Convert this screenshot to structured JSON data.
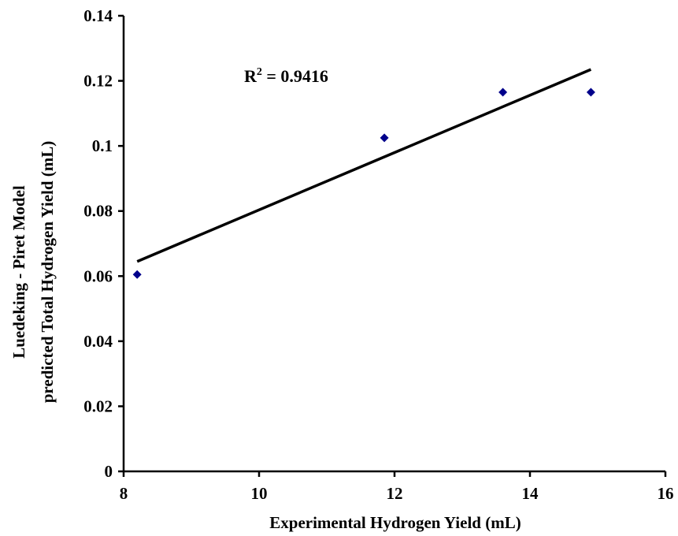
{
  "chart_data": {
    "type": "scatter",
    "xlabel": "Experimental Hydrogen Yield (mL)",
    "ylabel_line1": "Luedeking - Piret Model",
    "ylabel_line2": "predicted Total Hydrogen Yield (mL)",
    "xlim": [
      8,
      16
    ],
    "ylim": [
      0,
      0.14
    ],
    "x_ticks": [
      8,
      10,
      12,
      14,
      16
    ],
    "y_ticks": [
      0,
      0.02,
      0.04,
      0.06,
      0.08,
      0.1,
      0.12,
      0.14
    ],
    "x_tick_labels": [
      "8",
      "10",
      "12",
      "14",
      "16"
    ],
    "y_tick_labels": [
      "0",
      "0.02",
      "0.04",
      "0.06",
      "0.08",
      "0.1",
      "0.12",
      "0.14"
    ],
    "series": [
      {
        "marker": "diamond",
        "color": "#00008B",
        "x": [
          8.2,
          11.85,
          13.6,
          14.9
        ],
        "y": [
          0.0605,
          0.1025,
          0.1165,
          0.1165
        ]
      }
    ],
    "trendline": {
      "type": "linear",
      "color": "#000000",
      "x": [
        8.2,
        14.9
      ],
      "y": [
        0.0645,
        0.1235
      ]
    },
    "annotation": {
      "prefix": "R",
      "superscript": "2",
      "suffix": " = 0.9416"
    },
    "grid": false,
    "legend": "none"
  }
}
